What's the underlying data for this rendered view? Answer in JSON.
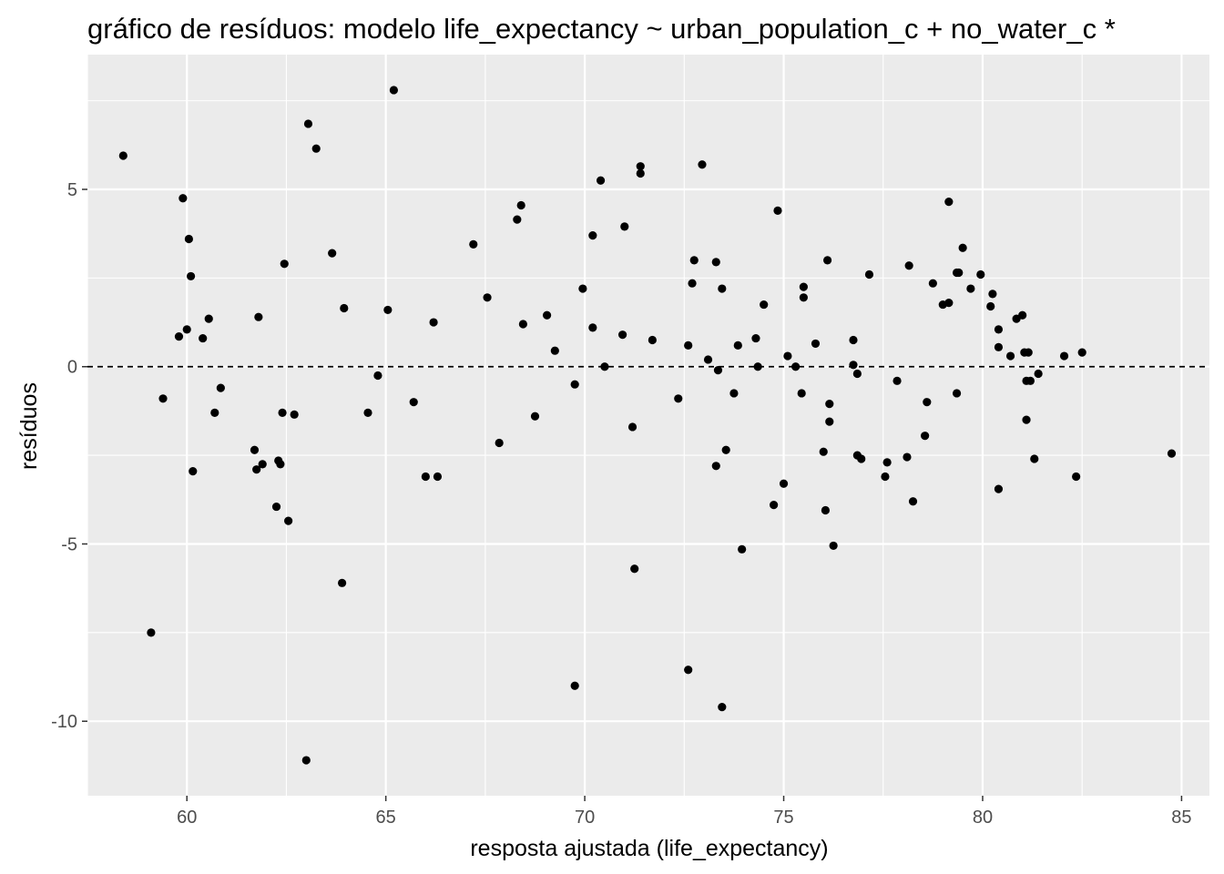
{
  "chart_data": {
    "type": "scatter",
    "title": "gráfico de resíduos: modelo life_expectancy ~ urban_population_c + no_water_c *",
    "xlabel": "resposta ajustada (life_expectancy)",
    "ylabel": "resíduos",
    "xlim": [
      57.5,
      85.7
    ],
    "ylim": [
      -12.1,
      8.8
    ],
    "x_ticks": [
      60,
      65,
      70,
      75,
      80,
      85
    ],
    "x_tick_labels": [
      "60",
      "65",
      "70",
      "75",
      "80",
      "85"
    ],
    "y_ticks": [
      -10,
      -5,
      0,
      5
    ],
    "y_tick_labels": [
      "-10",
      "-5",
      "0",
      "5"
    ],
    "reference_line": {
      "y": 0,
      "style": "dashed"
    },
    "grid": true,
    "background": "#ebebeb",
    "point_color": "#000000",
    "points": [
      {
        "x": 58.4,
        "y": 5.95
      },
      {
        "x": 59.1,
        "y": -7.5
      },
      {
        "x": 59.4,
        "y": -0.9
      },
      {
        "x": 59.8,
        "y": 0.85
      },
      {
        "x": 59.9,
        "y": 4.75
      },
      {
        "x": 60.0,
        "y": 1.05
      },
      {
        "x": 60.05,
        "y": 3.6
      },
      {
        "x": 60.1,
        "y": 2.55
      },
      {
        "x": 60.15,
        "y": -2.95
      },
      {
        "x": 60.4,
        "y": 0.8
      },
      {
        "x": 60.55,
        "y": 1.35
      },
      {
        "x": 60.7,
        "y": -1.3
      },
      {
        "x": 60.85,
        "y": -0.6
      },
      {
        "x": 61.7,
        "y": -2.35
      },
      {
        "x": 61.75,
        "y": -2.9
      },
      {
        "x": 61.8,
        "y": 1.4
      },
      {
        "x": 61.9,
        "y": -2.75
      },
      {
        "x": 62.25,
        "y": -3.95
      },
      {
        "x": 62.3,
        "y": -2.65
      },
      {
        "x": 62.35,
        "y": -2.75
      },
      {
        "x": 62.4,
        "y": -1.3
      },
      {
        "x": 62.45,
        "y": 2.9
      },
      {
        "x": 62.55,
        "y": -4.35
      },
      {
        "x": 62.7,
        "y": -1.35
      },
      {
        "x": 63.0,
        "y": -11.1
      },
      {
        "x": 63.05,
        "y": 6.85
      },
      {
        "x": 63.25,
        "y": 6.15
      },
      {
        "x": 63.65,
        "y": 3.2
      },
      {
        "x": 63.9,
        "y": -6.1
      },
      {
        "x": 63.95,
        "y": 1.65
      },
      {
        "x": 64.55,
        "y": -1.3
      },
      {
        "x": 64.8,
        "y": -0.25
      },
      {
        "x": 65.05,
        "y": 1.6
      },
      {
        "x": 65.2,
        "y": 7.8
      },
      {
        "x": 65.7,
        "y": -1.0
      },
      {
        "x": 66.0,
        "y": -3.1
      },
      {
        "x": 66.2,
        "y": 1.25
      },
      {
        "x": 66.3,
        "y": -3.1
      },
      {
        "x": 67.2,
        "y": 3.45
      },
      {
        "x": 67.55,
        "y": 1.95
      },
      {
        "x": 67.85,
        "y": -2.15
      },
      {
        "x": 68.3,
        "y": 4.15
      },
      {
        "x": 68.4,
        "y": 4.55
      },
      {
        "x": 68.45,
        "y": 1.2
      },
      {
        "x": 68.75,
        "y": -1.4
      },
      {
        "x": 69.05,
        "y": 1.45
      },
      {
        "x": 69.25,
        "y": 0.45
      },
      {
        "x": 69.75,
        "y": -0.5
      },
      {
        "x": 69.75,
        "y": -9.0
      },
      {
        "x": 69.95,
        "y": 2.2
      },
      {
        "x": 70.2,
        "y": 1.1
      },
      {
        "x": 70.2,
        "y": 3.7
      },
      {
        "x": 70.4,
        "y": 5.25
      },
      {
        "x": 70.5,
        "y": 0.0
      },
      {
        "x": 70.95,
        "y": 0.9
      },
      {
        "x": 71.0,
        "y": 3.95
      },
      {
        "x": 71.2,
        "y": -1.7
      },
      {
        "x": 71.25,
        "y": -5.7
      },
      {
        "x": 71.4,
        "y": 5.45
      },
      {
        "x": 71.4,
        "y": 5.65
      },
      {
        "x": 71.7,
        "y": 0.75
      },
      {
        "x": 72.35,
        "y": -0.9
      },
      {
        "x": 72.6,
        "y": 0.6
      },
      {
        "x": 72.6,
        "y": -8.55
      },
      {
        "x": 72.7,
        "y": 2.35
      },
      {
        "x": 72.75,
        "y": 3.0
      },
      {
        "x": 72.95,
        "y": 5.7
      },
      {
        "x": 73.1,
        "y": 0.2
      },
      {
        "x": 73.3,
        "y": -2.8
      },
      {
        "x": 73.3,
        "y": 2.95
      },
      {
        "x": 73.35,
        "y": -0.1
      },
      {
        "x": 73.45,
        "y": 2.2
      },
      {
        "x": 73.45,
        "y": -9.6
      },
      {
        "x": 73.55,
        "y": -2.35
      },
      {
        "x": 73.75,
        "y": -0.75
      },
      {
        "x": 73.85,
        "y": 0.6
      },
      {
        "x": 73.95,
        "y": -5.15
      },
      {
        "x": 74.3,
        "y": 0.8
      },
      {
        "x": 74.35,
        "y": 0.0
      },
      {
        "x": 74.5,
        "y": 1.75
      },
      {
        "x": 74.75,
        "y": -3.9
      },
      {
        "x": 74.85,
        "y": 4.4
      },
      {
        "x": 75.0,
        "y": -3.3
      },
      {
        "x": 75.1,
        "y": 0.3
      },
      {
        "x": 75.3,
        "y": 0.0
      },
      {
        "x": 75.45,
        "y": -0.75
      },
      {
        "x": 75.5,
        "y": 2.25
      },
      {
        "x": 75.5,
        "y": 1.95
      },
      {
        "x": 75.8,
        "y": 0.65
      },
      {
        "x": 76.0,
        "y": -2.4
      },
      {
        "x": 76.05,
        "y": -4.05
      },
      {
        "x": 76.1,
        "y": 3.0
      },
      {
        "x": 76.15,
        "y": -1.05
      },
      {
        "x": 76.15,
        "y": -1.55
      },
      {
        "x": 76.25,
        "y": -5.05
      },
      {
        "x": 76.75,
        "y": 0.75
      },
      {
        "x": 76.75,
        "y": 0.05
      },
      {
        "x": 76.85,
        "y": -2.5
      },
      {
        "x": 76.85,
        "y": -0.2
      },
      {
        "x": 76.95,
        "y": -2.6
      },
      {
        "x": 77.15,
        "y": 2.6
      },
      {
        "x": 77.55,
        "y": -3.1
      },
      {
        "x": 77.6,
        "y": -2.7
      },
      {
        "x": 77.85,
        "y": -0.4
      },
      {
        "x": 78.1,
        "y": -2.55
      },
      {
        "x": 78.15,
        "y": 2.85
      },
      {
        "x": 78.25,
        "y": -3.8
      },
      {
        "x": 78.55,
        "y": -1.95
      },
      {
        "x": 78.6,
        "y": -1.0
      },
      {
        "x": 78.75,
        "y": 2.35
      },
      {
        "x": 79.0,
        "y": 1.75
      },
      {
        "x": 79.15,
        "y": 1.8
      },
      {
        "x": 79.15,
        "y": 4.65
      },
      {
        "x": 79.35,
        "y": -0.75
      },
      {
        "x": 79.35,
        "y": 2.65
      },
      {
        "x": 79.4,
        "y": 2.65
      },
      {
        "x": 79.5,
        "y": 3.35
      },
      {
        "x": 79.7,
        "y": 2.2
      },
      {
        "x": 79.95,
        "y": 2.6
      },
      {
        "x": 80.2,
        "y": 1.7
      },
      {
        "x": 80.25,
        "y": 2.05
      },
      {
        "x": 80.4,
        "y": 1.05
      },
      {
        "x": 80.4,
        "y": 0.55
      },
      {
        "x": 80.4,
        "y": -3.45
      },
      {
        "x": 80.7,
        "y": 0.3
      },
      {
        "x": 80.85,
        "y": 1.35
      },
      {
        "x": 81.0,
        "y": 1.45
      },
      {
        "x": 81.05,
        "y": 0.4
      },
      {
        "x": 81.1,
        "y": -0.4
      },
      {
        "x": 81.1,
        "y": -1.5
      },
      {
        "x": 81.15,
        "y": 0.4
      },
      {
        "x": 81.2,
        "y": -0.4
      },
      {
        "x": 81.3,
        "y": -2.6
      },
      {
        "x": 81.4,
        "y": -0.2
      },
      {
        "x": 82.05,
        "y": 0.3
      },
      {
        "x": 82.35,
        "y": -3.1
      },
      {
        "x": 82.5,
        "y": 0.4
      },
      {
        "x": 84.75,
        "y": -2.45
      }
    ]
  }
}
